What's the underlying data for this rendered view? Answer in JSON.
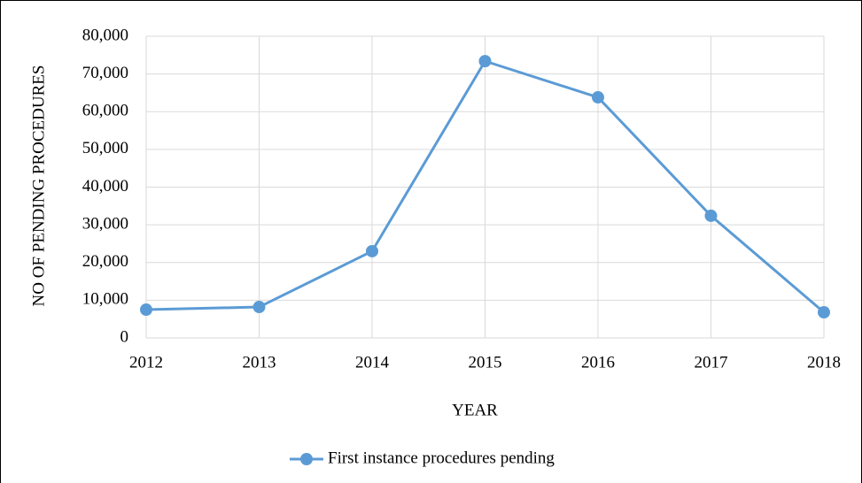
{
  "chart_data": {
    "type": "line",
    "x_label": "YEAR",
    "y_label": "NO OF PENDING PROCEDURES",
    "categories": [
      "2012",
      "2013",
      "2014",
      "2015",
      "2016",
      "2017",
      "2018"
    ],
    "series": [
      {
        "name": "First instance procedures pending",
        "color": "#5b9bd5",
        "values": [
          7500,
          8200,
          23000,
          73400,
          63800,
          32400,
          6800
        ]
      }
    ],
    "ylim": [
      0,
      80000
    ],
    "yticks": [
      0,
      {
        "value": 10000,
        "label": "10,000"
      },
      {
        "value": 20000,
        "label": "20,000"
      },
      {
        "value": 30000,
        "label": "30,000"
      },
      {
        "value": 40000,
        "label": "40,000"
      },
      {
        "value": 50000,
        "label": "50,000"
      },
      {
        "value": 60000,
        "label": "60,000"
      },
      {
        "value": 70000,
        "label": "70,000"
      },
      {
        "value": 80000,
        "label": "80,000"
      }
    ],
    "grid": true,
    "legend": "bottom"
  }
}
